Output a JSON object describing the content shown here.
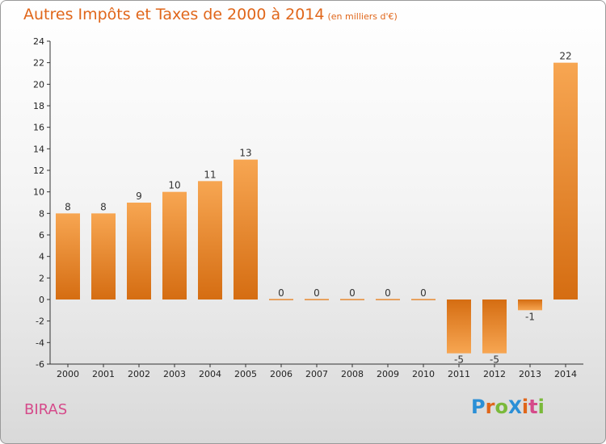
{
  "header": {
    "title": "Autres Impôts et Taxes de 2000 à 2014",
    "unit": "(en milliers d'€)"
  },
  "footer": {
    "commune": "BIRAS",
    "logo": {
      "text": "ProXiti",
      "letters": [
        "P",
        "r",
        "o",
        "X",
        "i",
        "t",
        "i"
      ]
    }
  },
  "colors": {
    "bar_light": "#f7a652",
    "bar_dark": "#d56d12",
    "title": "#e0661a",
    "commune": "#d54a8a",
    "logo": [
      "#2b8fd6",
      "#e0661a",
      "#7ab93a",
      "#2b8fd6",
      "#e0661a",
      "#d54a8a",
      "#7ab93a"
    ]
  },
  "chart_data": {
    "type": "bar",
    "title": "Autres Impôts et Taxes de 2000 à 2014",
    "subtitle": "(en milliers d'€)",
    "xlabel": "",
    "ylabel": "",
    "categories": [
      "2000",
      "2001",
      "2002",
      "2003",
      "2004",
      "2005",
      "2006",
      "2007",
      "2008",
      "2009",
      "2010",
      "2011",
      "2012",
      "2013",
      "2014"
    ],
    "values": [
      8,
      8,
      9,
      10,
      11,
      13,
      0,
      0,
      0,
      0,
      0,
      -5,
      -5,
      -1,
      22
    ],
    "ylim": [
      -6,
      24
    ],
    "yticks": [
      -6,
      -4,
      -2,
      0,
      2,
      4,
      6,
      8,
      10,
      12,
      14,
      16,
      18,
      20,
      22,
      24
    ],
    "grid": false,
    "legend": "none"
  }
}
